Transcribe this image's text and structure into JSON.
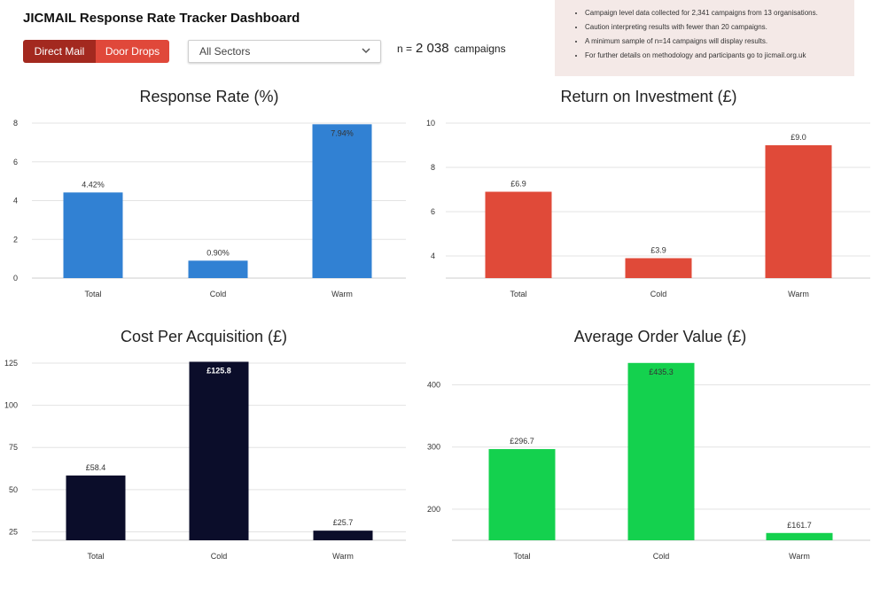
{
  "header": {
    "title": "JICMAIL Response Rate Tracker Dashboard",
    "buttons": {
      "direct_mail": "Direct Mail",
      "door_drops": "Door Drops"
    },
    "sector_select": {
      "selected": "All Sectors"
    },
    "n_count": {
      "prefix": "n =",
      "value": "2 038",
      "suffix": "campaigns"
    }
  },
  "notes": [
    "Campaign level data collected for 2,341 campaigns from 13 organisations.",
    "Caution interpreting results with fewer than 20 campaigns.",
    "A minimum sample of n=14 campaigns will display results.",
    "For further details on methodology and participants go to jicmail.org.uk"
  ],
  "colors": {
    "direct_mail_btn": "#a3291f",
    "door_drops_btn": "#e0483a",
    "notes_bg": "#f4e9e7"
  },
  "chart_data": [
    {
      "type": "bar",
      "title": "Response Rate (%)",
      "categories": [
        "Total",
        "Cold",
        "Warm"
      ],
      "values": [
        4.42,
        0.9,
        7.94
      ],
      "data_labels": [
        "4.42%",
        "0.90%",
        "7.94%"
      ],
      "label_inside": [
        false,
        false,
        true
      ],
      "ylim": [
        0,
        8
      ],
      "yticks": [
        0,
        2,
        4,
        6,
        8
      ],
      "color": "#3181d3",
      "grid": true
    },
    {
      "type": "bar",
      "title": "Return on Investment (£)",
      "categories": [
        "Total",
        "Cold",
        "Warm"
      ],
      "values": [
        6.9,
        3.9,
        9.0
      ],
      "data_labels": [
        "£6.9",
        "£3.9",
        "£9.0"
      ],
      "label_inside": [
        false,
        false,
        false
      ],
      "ylim": [
        3,
        10
      ],
      "yticks": [
        4,
        6,
        8,
        10
      ],
      "color": "#e04a39",
      "grid": true
    },
    {
      "type": "bar",
      "title": "Cost Per Acquisition (£)",
      "categories": [
        "Total",
        "Cold",
        "Warm"
      ],
      "values": [
        58.4,
        125.8,
        25.7
      ],
      "data_labels": [
        "£58.4",
        "£125.8",
        "£25.7"
      ],
      "label_inside": [
        false,
        true,
        false
      ],
      "ylim": [
        20,
        125
      ],
      "yticks": [
        25,
        50,
        75,
        100,
        125
      ],
      "color": "#0b0d2a",
      "grid": true
    },
    {
      "type": "bar",
      "title": "Average Order Value (£)",
      "categories": [
        "Total",
        "Cold",
        "Warm"
      ],
      "values": [
        296.7,
        435.3,
        161.7
      ],
      "data_labels": [
        "£296.7",
        "£435.3",
        "£161.7"
      ],
      "label_inside": [
        false,
        true,
        false
      ],
      "ylim": [
        150,
        435
      ],
      "yticks": [
        200,
        300,
        400
      ],
      "color": "#14d14e",
      "grid": true
    }
  ]
}
